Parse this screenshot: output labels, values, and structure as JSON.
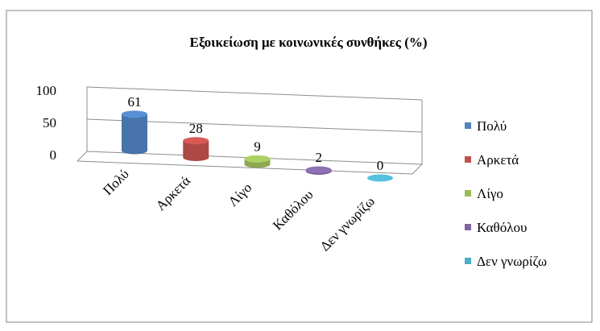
{
  "chart_data": {
    "type": "bar",
    "title": "Εξοικείωση με κοινωνικές συνθήκες (%)",
    "categories": [
      "Πολύ",
      "Αρκετά",
      "Λίγο",
      "Καθόλου",
      "Δεν γνωρίζω"
    ],
    "values": [
      61,
      28,
      9,
      2,
      0
    ],
    "data_labels": [
      "61",
      "28",
      "9",
      "2",
      "0"
    ],
    "y_ticks": [
      "100",
      "50",
      "0"
    ],
    "ylim": [
      0,
      100
    ],
    "grid": true,
    "legend_position": "right",
    "legend": [
      "Πολύ",
      "Αρκετά",
      "Λίγο",
      "Καθόλου",
      "Δεν γνωρίζω"
    ],
    "colors": [
      "#4F81BD",
      "#C0504D",
      "#9BBB59",
      "#8064A2",
      "#4BACC6"
    ]
  }
}
